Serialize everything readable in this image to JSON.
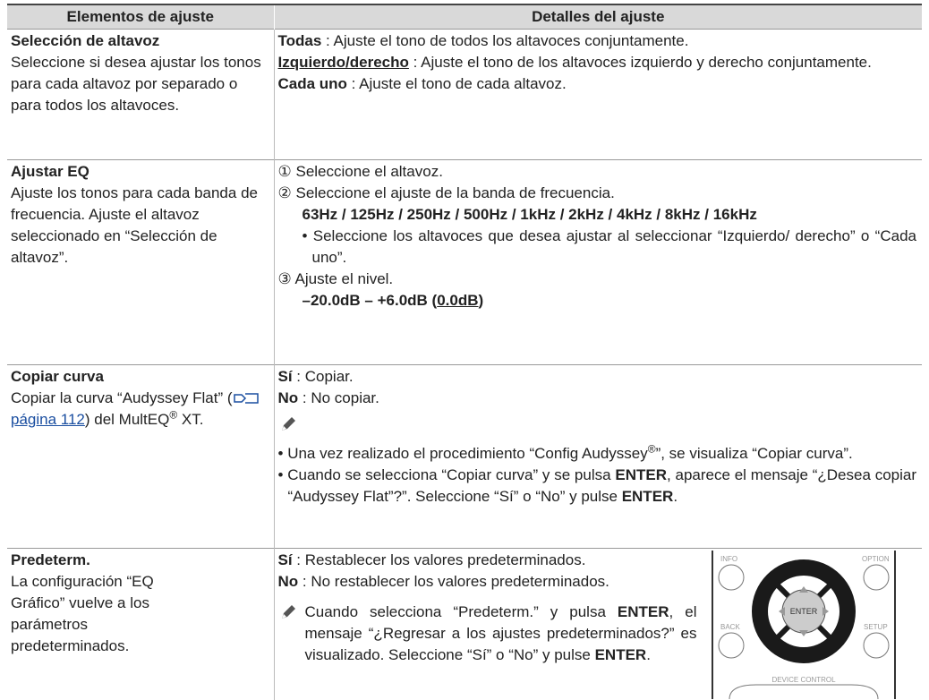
{
  "table": {
    "headers": [
      "Elementos de ajuste",
      "Detalles del ajuste"
    ],
    "rows": [
      {
        "item": {
          "title": "Selección de altavoz",
          "description": "Seleccione si desea ajustar los tonos para cada altavoz por separado o para todos los altavoces."
        },
        "details": [
          {
            "term": "Todas",
            "text": " : Ajuste el tono de todos los altavoces conjuntamente."
          },
          {
            "term": "Izquierdo/derecho",
            "text": " : Ajuste el tono de los altavoces izquierdo y derecho conjuntamente."
          },
          {
            "term": "Cada uno",
            "text": " : Ajuste el tono de cada altavoz."
          }
        ]
      },
      {
        "item": {
          "title": "Ajustar EQ",
          "description": "Ajuste los tonos para cada banda de frecuencia. Ajuste el altavoz seleccionado en “Selección de altavoz”."
        },
        "steps": [
          {
            "marker": "①",
            "text": "Seleccione el altavoz."
          },
          {
            "marker": "②",
            "text": "Seleccione el ajuste de la banda de frecuencia.",
            "values": "63Hz / 125Hz / 250Hz / 500Hz / 1kHz / 2kHz / 4kHz / 8kHz / 16kHz",
            "note": "Seleccione los altavoces que desea ajustar al seleccionar “Izquierdo/ derecho” o “Cada uno”."
          },
          {
            "marker": "③",
            "text": "Ajuste el nivel.",
            "range": [
              "–20.0dB – +6.0dB (",
              "0.0dB",
              ")"
            ]
          }
        ]
      },
      {
        "item": {
          "title": "Copiar curva",
          "description": [
            "Copiar la curva “Audyssey Flat” (",
            "página 112",
            ") del MultEQ",
            "®",
            " XT."
          ]
        },
        "details": [
          {
            "term": "Sí",
            "text": " : Copiar."
          },
          {
            "term": "No",
            "text": " : No copiar."
          }
        ],
        "notes": [
          [
            "Una vez realizado el procedimiento “Config Audyssey",
            "®",
            "”, se visualiza “Copiar curva”."
          ],
          [
            "Cuando se selecciona “Copiar curva” y se pulsa ",
            "ENTER",
            ", aparece el mensaje “¿Desea copiar “Audyssey Flat”?”. Seleccione “Sí” o “No” y pulse ",
            "ENTER",
            "."
          ]
        ]
      },
      {
        "item": {
          "title": "Predeterm.",
          "description": "La configuración “EQ Gráfico” vuelve a los parámetros predeterminados."
        },
        "details": [
          {
            "term": "Sí",
            "text": " : Restablecer los valores predeterminados."
          },
          {
            "term": "No",
            "text": " : No restablecer los valores predeterminados."
          }
        ],
        "note": [
          "Cuando selecciona “Predeterm.” y pulsa ",
          "ENTER",
          ", el mensaje “¿Regresar a los ajustes predeterminados?” es visualizado. Seleccione “Sí” o “No” y pulse ",
          "ENTER",
          "."
        ],
        "remote": {
          "labels": [
            "INFO",
            "OPTION",
            "ENTER",
            "BACK",
            "SETUP",
            "DEVICE CONTROL"
          ]
        }
      }
    ]
  }
}
